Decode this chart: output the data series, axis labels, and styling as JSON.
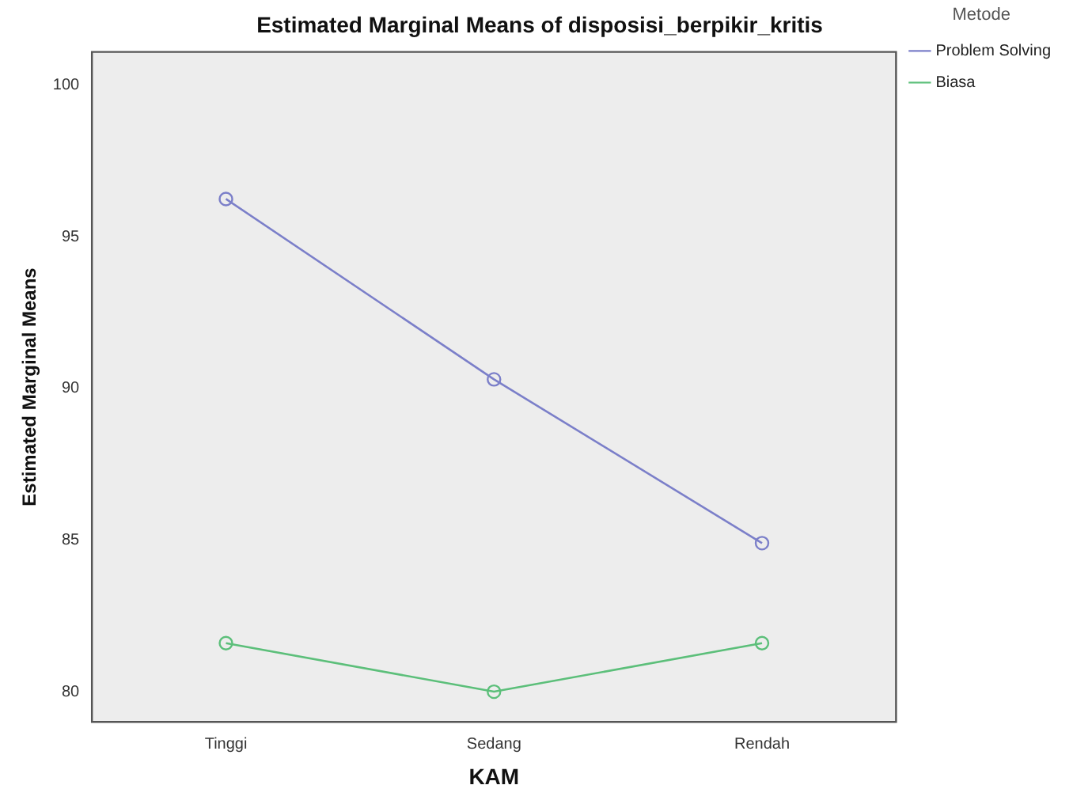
{
  "chart_data": {
    "type": "line",
    "title": "Estimated Marginal Means of disposisi_berpikir_kritis",
    "xlabel": "KAM",
    "ylabel": "Estimated Marginal Means",
    "legend_title": "Metode",
    "categories": [
      "Tinggi",
      "Sedang",
      "Rendah"
    ],
    "series": [
      {
        "name": "Problem Solving",
        "color": "#7b7fc9",
        "values": [
          96.25,
          90.3,
          84.9
        ]
      },
      {
        "name": "Biasa",
        "color": "#5cbf7a",
        "values": [
          81.6,
          80.0,
          81.6
        ]
      }
    ],
    "ylim": [
      79,
      101.1
    ],
    "yticks": [
      80,
      85,
      90,
      95,
      100
    ],
    "grid": false,
    "legend": "top right",
    "marker": "circle",
    "line_style": "solid"
  }
}
